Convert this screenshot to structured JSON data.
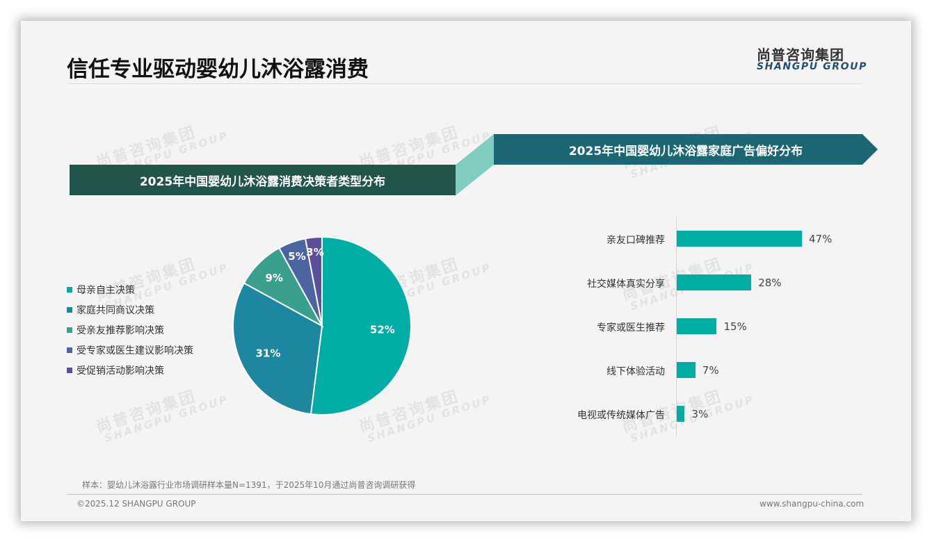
{
  "slide": {
    "title": "信任专业驱动婴幼儿沐浴露消费",
    "logo": {
      "cn": "尚普咨询集团",
      "en": "SHANGPU GROUP"
    },
    "watermark": {
      "cn": "尚普咨询集团",
      "en": "SHANGPU GROUP"
    },
    "note": "样本：婴幼儿沐浴露行业市场调研样本量N=1391，于2025年10月通过尚普咨询调研获得",
    "copyright": "©2025.12 SHANGPU GROUP",
    "website": "www.shangpu-china.com"
  },
  "colors": {
    "header_left": "#21544b",
    "header_right": "#1c6674",
    "connector": "#7fcebf",
    "bar": "#00ada5"
  },
  "chart_data": [
    {
      "type": "pie",
      "title": "2025年中国婴幼儿沐浴露消费决策者类型分布",
      "categories": [
        "母亲自主决策",
        "家庭共同商议决策",
        "受亲友推荐影响决策",
        "受专家或医生建议影响决策",
        "受促销活动影响决策"
      ],
      "values": [
        52,
        31,
        9,
        5,
        3
      ],
      "labels": [
        "52%",
        "31%",
        "9%",
        "5%",
        "3%"
      ],
      "colors": [
        "#00ada5",
        "#1d87a0",
        "#3a9f8c",
        "#4c64a0",
        "#5a4f98"
      ],
      "unit": "%",
      "legend_position": "left",
      "start_angle": "12 o'clock, clockwise"
    },
    {
      "type": "bar",
      "orientation": "horizontal",
      "title": "2025年中国婴幼儿沐浴露家庭广告偏好分布",
      "categories": [
        "亲友口碑推荐",
        "社交媒体真实分享",
        "专家或医生推荐",
        "线下体验活动",
        "电视或传统媒体广告"
      ],
      "values": [
        47,
        28,
        15,
        7,
        3
      ],
      "labels": [
        "47%",
        "28%",
        "15%",
        "7%",
        "3%"
      ],
      "unit": "%",
      "xlabel": "",
      "ylabel": "",
      "grid": false,
      "color": "#00ada5"
    }
  ]
}
